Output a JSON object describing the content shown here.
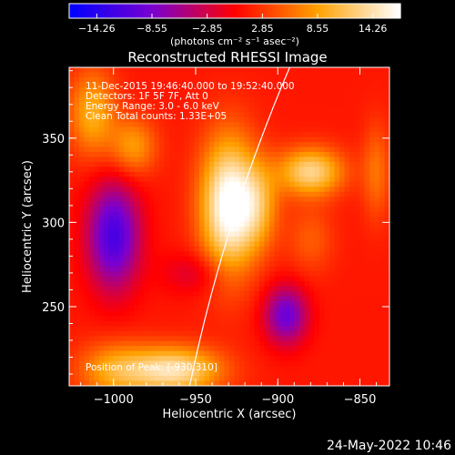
{
  "chart_data": {
    "type": "heatmap",
    "title": "Reconstructed RHESSI Image",
    "xlabel": "Heliocentric X (arcsec)",
    "ylabel": "Heliocentric Y (arcsec)",
    "xlim": [
      -1027,
      -832
    ],
    "ylim": [
      203,
      392
    ],
    "x_ticks": [
      {
        "value": -1000,
        "label": "−1000"
      },
      {
        "value": -950,
        "label": "−950"
      },
      {
        "value": -900,
        "label": "−900"
      },
      {
        "value": -850,
        "label": "−850"
      }
    ],
    "y_ticks": [
      {
        "value": 250,
        "label": "250"
      },
      {
        "value": 300,
        "label": "300"
      },
      {
        "value": 350,
        "label": "350"
      }
    ],
    "colorbar": {
      "min": -14.26,
      "max": 14.26,
      "ticks": [
        "−14.26",
        "−8.55",
        "−2.85",
        "2.85",
        "8.55",
        "14.26"
      ],
      "units": "(photons cm⁻² s⁻¹ asec⁻²)",
      "colors": [
        "#0000ff",
        "#7a00d0",
        "#ff0000",
        "#ffa000",
        "#ffffff"
      ]
    },
    "info_lines": [
      "11-Dec-2015 19:46:40.000 to 19:52:40.000",
      "Detectors: 1F 5F 7F, Att 0",
      "Energy Range: 3.0 - 6.0 keV",
      "Clean     Total counts: 1.33E+05"
    ],
    "peak_label": "Position of Peak: [-930,310]",
    "peak": {
      "x": -930,
      "y": 310
    },
    "limb_color": "#ffffff",
    "sources": [
      {
        "x": -930,
        "y": 310,
        "sx": 12,
        "sy": 28,
        "amp": 14.0
      },
      {
        "x": -912,
        "y": 310,
        "sx": 9,
        "sy": 18,
        "amp": 6.0
      },
      {
        "x": -880,
        "y": 330,
        "sx": 14,
        "sy": 10,
        "amp": 10.0
      },
      {
        "x": -963,
        "y": 212,
        "sx": 20,
        "sy": 10,
        "amp": 11.0
      },
      {
        "x": -1000,
        "y": 212,
        "sx": 16,
        "sy": 12,
        "amp": 6.0
      },
      {
        "x": -1013,
        "y": 365,
        "sx": 10,
        "sy": 18,
        "amp": 7.0
      },
      {
        "x": -988,
        "y": 345,
        "sx": 10,
        "sy": 12,
        "amp": 6.0
      },
      {
        "x": -1000,
        "y": 292,
        "sx": 11,
        "sy": 22,
        "amp": -11.0
      },
      {
        "x": -895,
        "y": 245,
        "sx": 9,
        "sy": 12,
        "amp": -9.0
      },
      {
        "x": -950,
        "y": 270,
        "sx": 14,
        "sy": 9,
        "amp": -3.0
      },
      {
        "x": -880,
        "y": 290,
        "sx": 10,
        "sy": 14,
        "amp": 3.0
      },
      {
        "x": -840,
        "y": 330,
        "sx": 6,
        "sy": 20,
        "amp": 4.0
      }
    ],
    "background": 1.0
  },
  "footer": {
    "date": "24-May-2022 10:46"
  }
}
